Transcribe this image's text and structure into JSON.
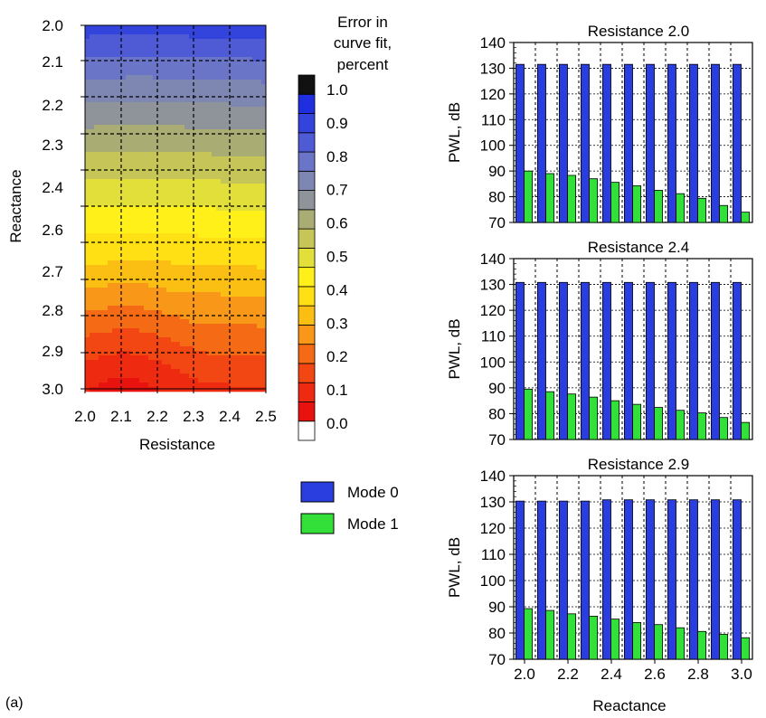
{
  "panel_label": "(a)",
  "colors": {
    "mode0": "#2a3ee0",
    "mode1": "#33e039",
    "gridline": "#000000",
    "colorbar_stops": [
      "#ffffff",
      "#e8120f",
      "#ee2b10",
      "#f24712",
      "#f56a14",
      "#f89718",
      "#fbbf14",
      "#ffe015",
      "#fff01a",
      "#e2df3a",
      "#c6c658",
      "#a9ad73",
      "#8f949a",
      "#7e86b2",
      "#6a75c8",
      "#4f5bd4",
      "#3344dc",
      "#1f2fe0",
      "#111111"
    ]
  },
  "chart_data": [
    {
      "id": "contour",
      "type": "heatmap",
      "title": "",
      "xlabel": "Resistance",
      "ylabel": "Reactance",
      "x_ticks": [
        "2.0",
        "2.1",
        "2.2",
        "2.3",
        "2.4",
        "2.5"
      ],
      "x_values": [
        2.0,
        2.1,
        2.2,
        2.3,
        2.4,
        2.5
      ],
      "y_ticks": [
        "2.0",
        "2.1",
        "2.2",
        "2.3",
        "2.4",
        "2.6",
        "2.7",
        "2.8",
        "2.9",
        "3.0"
      ],
      "y_values": [
        2.0,
        2.1,
        2.2,
        2.3,
        2.4,
        2.6,
        2.7,
        2.8,
        2.9,
        3.0
      ],
      "xlim": [
        2.0,
        2.5
      ],
      "ylim": [
        2.0,
        3.0
      ],
      "grid": true,
      "colorbar": {
        "title_lines": [
          "Error in",
          "curve fit,",
          "percent"
        ],
        "ticks": [
          "0.0",
          "0.1",
          "0.2",
          "0.3",
          "0.4",
          "0.5",
          "0.6",
          "0.7",
          "0.8",
          "0.9",
          "1.0"
        ],
        "range": [
          0.0,
          1.0
        ]
      },
      "error_min": {
        "resistance": 2.1,
        "reactance": 3.0,
        "value": 0.1
      },
      "error_max": {
        "reactance": 2.0,
        "value": 0.9
      }
    },
    {
      "id": "bars-r20",
      "type": "bar",
      "title": "Resistance 2.0",
      "ylabel": "PWL, dB",
      "xlabel": "",
      "ylim": [
        70,
        140
      ],
      "y_ticks": [
        "70",
        "80",
        "90",
        "100",
        "110",
        "120",
        "130",
        "140"
      ],
      "x": [
        2.0,
        2.1,
        2.2,
        2.3,
        2.4,
        2.5,
        2.6,
        2.7,
        2.8,
        2.9,
        3.0
      ],
      "x_ticks": [],
      "series": [
        {
          "name": "Mode 0",
          "values": [
            131.5,
            131.5,
            131.5,
            131.5,
            131.5,
            131.5,
            131.5,
            131.5,
            131.5,
            131.5,
            131.5
          ]
        },
        {
          "name": "Mode 1",
          "values": [
            90,
            89,
            88.3,
            87,
            85.6,
            84.3,
            82.5,
            81.2,
            79.4,
            76.6,
            74
          ]
        }
      ]
    },
    {
      "id": "bars-r24",
      "type": "bar",
      "title": "Resistance 2.4",
      "ylabel": "PWL, dB",
      "xlabel": "",
      "ylim": [
        70,
        140
      ],
      "y_ticks": [
        "70",
        "80",
        "90",
        "100",
        "110",
        "120",
        "130",
        "140"
      ],
      "x": [
        2.0,
        2.1,
        2.2,
        2.3,
        2.4,
        2.5,
        2.6,
        2.7,
        2.8,
        2.9,
        3.0
      ],
      "x_ticks": [],
      "series": [
        {
          "name": "Mode 0",
          "values": [
            130.8,
            130.8,
            130.8,
            130.8,
            130.8,
            130.8,
            130.8,
            130.8,
            130.8,
            130.8,
            130.8
          ]
        },
        {
          "name": "Mode 1",
          "values": [
            89.5,
            88.5,
            87.6,
            86.4,
            85,
            83.6,
            82.4,
            81.3,
            80.3,
            78.5,
            76.6
          ]
        }
      ]
    },
    {
      "id": "bars-r29",
      "type": "bar",
      "title": "Resistance 2.9",
      "ylabel": "PWL, dB",
      "xlabel": "Reactance",
      "ylim": [
        70,
        140
      ],
      "y_ticks": [
        "70",
        "80",
        "90",
        "100",
        "110",
        "120",
        "130",
        "140"
      ],
      "x": [
        2.0,
        2.1,
        2.2,
        2.3,
        2.4,
        2.5,
        2.6,
        2.7,
        2.8,
        2.9,
        3.0
      ],
      "x_ticks": [
        "2.0",
        "2.2",
        "2.4",
        "2.6",
        "2.8",
        "3.0"
      ],
      "series": [
        {
          "name": "Mode 0",
          "values": [
            130.3,
            130.3,
            130.3,
            130.3,
            130.8,
            130.8,
            130.8,
            130.8,
            130.8,
            130.8,
            130.8
          ]
        },
        {
          "name": "Mode 1",
          "values": [
            89.3,
            88.6,
            87.3,
            86.4,
            85.3,
            84,
            83.2,
            82,
            80.6,
            79.5,
            78.2
          ]
        }
      ]
    }
  ],
  "legend": {
    "placement": "middle",
    "entries": [
      {
        "label": "Mode 0",
        "color_key": "mode0"
      },
      {
        "label": "Mode 1",
        "color_key": "mode1"
      }
    ]
  }
}
